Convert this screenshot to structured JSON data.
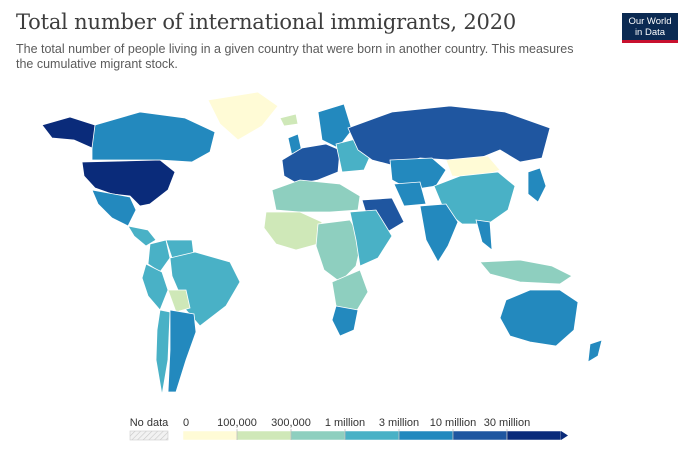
{
  "header": {
    "title": "Total number of international immigrants, 2020",
    "subtitle": "The total number of people living in a given country that were born in another country. This measures the cumulative migrant stock.",
    "logo_line1": "Our World",
    "logo_line2": "in Data"
  },
  "colors": {
    "background": "#ffffff",
    "ocean": "#ffffff",
    "border": "#ffffff",
    "no_data": "#eeeeee",
    "scale": [
      "#fffbd6",
      "#cfe8b8",
      "#8ecfbf",
      "#49b1c6",
      "#2389be",
      "#1f56a0",
      "#0a2b7a"
    ]
  },
  "legend": {
    "no_data_label": "No data",
    "ticks": [
      "0",
      "100,000",
      "300,000",
      "1 million",
      "3 million",
      "10 million",
      "30 million"
    ]
  },
  "chart_data": {
    "type": "choropleth",
    "title": "Total number of international immigrants, 2020",
    "bins": [
      {
        "from": 0,
        "to": 100000
      },
      {
        "from": 100000,
        "to": 300000
      },
      {
        "from": 300000,
        "to": 1000000
      },
      {
        "from": 1000000,
        "to": 3000000
      },
      {
        "from": 3000000,
        "to": 10000000
      },
      {
        "from": 10000000,
        "to": 30000000
      },
      {
        "from": 30000000,
        "to": null
      }
    ],
    "regions": [
      {
        "name": "United States",
        "bin": 6
      },
      {
        "name": "Canada",
        "bin": 4
      },
      {
        "name": "Alaska (US)",
        "bin": 6
      },
      {
        "name": "Greenland",
        "bin": 0
      },
      {
        "name": "Mexico",
        "bin": 4
      },
      {
        "name": "Central America",
        "bin": 3
      },
      {
        "name": "Colombia",
        "bin": 3
      },
      {
        "name": "Venezuela",
        "bin": 3
      },
      {
        "name": "Brazil",
        "bin": 3
      },
      {
        "name": "Peru",
        "bin": 3
      },
      {
        "name": "Bolivia",
        "bin": 1
      },
      {
        "name": "Chile",
        "bin": 3
      },
      {
        "name": "Argentina",
        "bin": 4
      },
      {
        "name": "Iceland",
        "bin": 1
      },
      {
        "name": "Scandinavia",
        "bin": 4
      },
      {
        "name": "United Kingdom",
        "bin": 4
      },
      {
        "name": "Western Europe",
        "bin": 5
      },
      {
        "name": "Eastern Europe",
        "bin": 3
      },
      {
        "name": "Russia",
        "bin": 5
      },
      {
        "name": "Kazakhstan",
        "bin": 4
      },
      {
        "name": "Mongolia",
        "bin": 0
      },
      {
        "name": "China",
        "bin": 3
      },
      {
        "name": "Saudi Arabia",
        "bin": 5
      },
      {
        "name": "Iran",
        "bin": 4
      },
      {
        "name": "India",
        "bin": 4
      },
      {
        "name": "Thailand",
        "bin": 4
      },
      {
        "name": "Indonesia",
        "bin": 2
      },
      {
        "name": "Japan",
        "bin": 4
      },
      {
        "name": "Australia",
        "bin": 4
      },
      {
        "name": "New Zealand",
        "bin": 4
      },
      {
        "name": "North Africa",
        "bin": 2
      },
      {
        "name": "West Africa",
        "bin": 1
      },
      {
        "name": "Central Africa",
        "bin": 2
      },
      {
        "name": "East Africa",
        "bin": 3
      },
      {
        "name": "Southern Africa",
        "bin": 2
      },
      {
        "name": "South Africa",
        "bin": 4
      }
    ]
  }
}
